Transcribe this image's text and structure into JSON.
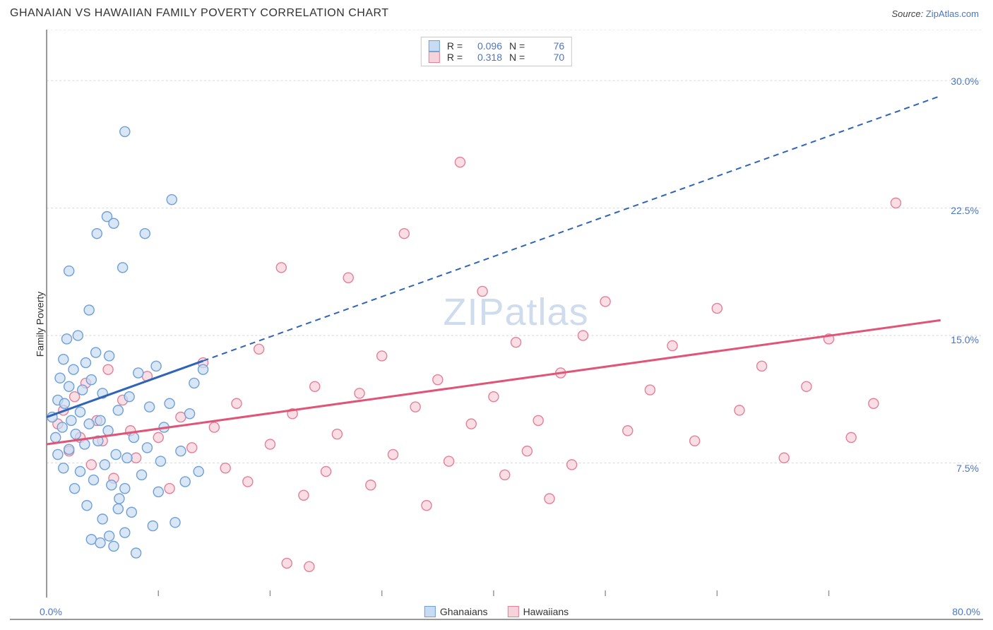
{
  "header": {
    "title": "GHANAIAN VS HAWAIIAN FAMILY POVERTY CORRELATION CHART",
    "source_prefix": "Source: ",
    "source_link": "ZipAtlas.com"
  },
  "chart": {
    "type": "scatter",
    "ylabel": "Family Poverty",
    "watermark": "ZIPatlas",
    "background_color": "#ffffff",
    "grid_color": "#d9d9d9",
    "axis_color": "#999999",
    "label_color": "#4a76c7",
    "xlim": [
      0,
      80
    ],
    "ylim": [
      0,
      33
    ],
    "xtick_step": 10,
    "yticks": [
      7.5,
      15.0,
      22.5,
      30.0
    ],
    "ytick_labels": [
      "7.5%",
      "15.0%",
      "22.5%",
      "30.0%"
    ],
    "xlabel_min": "0.0%",
    "xlabel_max": "80.0%",
    "marker_radius": 7,
    "marker_stroke_width": 1.4,
    "series": [
      {
        "name": "Ghanaians",
        "fill": "#c7dbf2",
        "stroke": "#6fa0d8",
        "line_color": "#2f64b8",
        "line_dash_after_x": 14,
        "R": "0.096",
        "N": "76",
        "trend": {
          "x1": 0,
          "y1": 10.2,
          "x2": 80,
          "y2": 29.1
        },
        "points": [
          [
            0.5,
            10.2
          ],
          [
            0.8,
            9.0
          ],
          [
            1.0,
            11.2
          ],
          [
            1.0,
            8.0
          ],
          [
            1.2,
            12.5
          ],
          [
            1.4,
            9.6
          ],
          [
            1.5,
            13.6
          ],
          [
            1.5,
            7.2
          ],
          [
            1.6,
            11.0
          ],
          [
            1.8,
            14.8
          ],
          [
            2.0,
            8.3
          ],
          [
            2.0,
            12.0
          ],
          [
            2.2,
            10.0
          ],
          [
            2.4,
            13.0
          ],
          [
            2.5,
            6.0
          ],
          [
            2.6,
            9.2
          ],
          [
            2.8,
            15.0
          ],
          [
            3.0,
            7.0
          ],
          [
            3.0,
            10.5
          ],
          [
            3.2,
            11.8
          ],
          [
            3.4,
            8.6
          ],
          [
            3.5,
            13.4
          ],
          [
            3.6,
            5.0
          ],
          [
            3.8,
            9.8
          ],
          [
            4.0,
            12.4
          ],
          [
            4.0,
            3.0
          ],
          [
            4.2,
            6.5
          ],
          [
            4.4,
            14.0
          ],
          [
            4.5,
            21.0
          ],
          [
            4.6,
            8.8
          ],
          [
            4.8,
            10.0
          ],
          [
            5.0,
            11.6
          ],
          [
            5.0,
            4.2
          ],
          [
            5.2,
            7.4
          ],
          [
            5.4,
            22.0
          ],
          [
            5.5,
            9.4
          ],
          [
            5.6,
            13.8
          ],
          [
            5.8,
            6.2
          ],
          [
            6.0,
            21.6
          ],
          [
            6.0,
            2.6
          ],
          [
            6.2,
            8.0
          ],
          [
            6.4,
            10.6
          ],
          [
            6.5,
            5.4
          ],
          [
            6.8,
            19.0
          ],
          [
            7.0,
            27.0
          ],
          [
            7.0,
            3.4
          ],
          [
            7.2,
            7.8
          ],
          [
            7.4,
            11.4
          ],
          [
            7.6,
            4.6
          ],
          [
            7.8,
            9.0
          ],
          [
            8.0,
            2.2
          ],
          [
            8.2,
            12.8
          ],
          [
            8.5,
            6.8
          ],
          [
            8.8,
            21.0
          ],
          [
            9.0,
            8.4
          ],
          [
            9.2,
            10.8
          ],
          [
            9.5,
            3.8
          ],
          [
            9.8,
            13.2
          ],
          [
            10.0,
            5.8
          ],
          [
            10.2,
            7.6
          ],
          [
            10.5,
            9.6
          ],
          [
            11.0,
            11.0
          ],
          [
            11.2,
            23.0
          ],
          [
            11.5,
            4.0
          ],
          [
            12.0,
            8.2
          ],
          [
            12.4,
            6.4
          ],
          [
            12.8,
            10.4
          ],
          [
            13.2,
            12.2
          ],
          [
            13.6,
            7.0
          ],
          [
            14.0,
            13.0
          ],
          [
            4.8,
            2.8
          ],
          [
            5.6,
            3.2
          ],
          [
            6.4,
            4.8
          ],
          [
            7.0,
            6.0
          ],
          [
            3.8,
            16.5
          ],
          [
            2.0,
            18.8
          ]
        ]
      },
      {
        "name": "Hawaiians",
        "fill": "#f6d2da",
        "stroke": "#e48098",
        "line_color": "#e05577",
        "line_dash_after_x": 80,
        "R": "0.318",
        "N": "70",
        "trend": {
          "x1": 0,
          "y1": 8.6,
          "x2": 80,
          "y2": 15.9
        },
        "points": [
          [
            1.0,
            9.8
          ],
          [
            1.5,
            10.6
          ],
          [
            2.0,
            8.2
          ],
          [
            2.5,
            11.4
          ],
          [
            3.0,
            9.0
          ],
          [
            3.5,
            12.2
          ],
          [
            4.0,
            7.4
          ],
          [
            4.5,
            10.0
          ],
          [
            5.0,
            8.8
          ],
          [
            5.5,
            13.0
          ],
          [
            6.0,
            6.6
          ],
          [
            6.8,
            11.2
          ],
          [
            7.5,
            9.4
          ],
          [
            8.0,
            7.8
          ],
          [
            9.0,
            12.6
          ],
          [
            10.0,
            9.0
          ],
          [
            11.0,
            6.0
          ],
          [
            12.0,
            10.2
          ],
          [
            13.0,
            8.4
          ],
          [
            14.0,
            13.4
          ],
          [
            15.0,
            9.6
          ],
          [
            16.0,
            7.2
          ],
          [
            17.0,
            11.0
          ],
          [
            18.0,
            6.4
          ],
          [
            19.0,
            14.2
          ],
          [
            20.0,
            8.6
          ],
          [
            21.0,
            19.0
          ],
          [
            22.0,
            10.4
          ],
          [
            23.0,
            5.6
          ],
          [
            24.0,
            12.0
          ],
          [
            25.0,
            7.0
          ],
          [
            26.0,
            9.2
          ],
          [
            27.0,
            18.4
          ],
          [
            28.0,
            11.6
          ],
          [
            29.0,
            6.2
          ],
          [
            30.0,
            13.8
          ],
          [
            31.0,
            8.0
          ],
          [
            32.0,
            21.0
          ],
          [
            33.0,
            10.8
          ],
          [
            34.0,
            5.0
          ],
          [
            35.0,
            12.4
          ],
          [
            36.0,
            7.6
          ],
          [
            37.0,
            25.2
          ],
          [
            38.0,
            9.8
          ],
          [
            39.0,
            17.6
          ],
          [
            40.0,
            11.4
          ],
          [
            41.0,
            6.8
          ],
          [
            42.0,
            14.6
          ],
          [
            43.0,
            8.2
          ],
          [
            44.0,
            10.0
          ],
          [
            45.0,
            5.4
          ],
          [
            46.0,
            12.8
          ],
          [
            47.0,
            7.4
          ],
          [
            48.0,
            15.0
          ],
          [
            50.0,
            17.0
          ],
          [
            52.0,
            9.4
          ],
          [
            54.0,
            11.8
          ],
          [
            56.0,
            14.4
          ],
          [
            58.0,
            8.8
          ],
          [
            60.0,
            16.6
          ],
          [
            62.0,
            10.6
          ],
          [
            64.0,
            13.2
          ],
          [
            66.0,
            7.8
          ],
          [
            68.0,
            12.0
          ],
          [
            70.0,
            14.8
          ],
          [
            72.0,
            9.0
          ],
          [
            74.0,
            11.0
          ],
          [
            76.0,
            22.8
          ],
          [
            21.5,
            1.6
          ],
          [
            23.5,
            1.4
          ]
        ]
      }
    ],
    "legend_bottom": [
      {
        "label": "Ghanaians",
        "fill": "#c7dbf2",
        "stroke": "#6fa0d8"
      },
      {
        "label": "Hawaiians",
        "fill": "#f6d2da",
        "stroke": "#e48098"
      }
    ]
  }
}
